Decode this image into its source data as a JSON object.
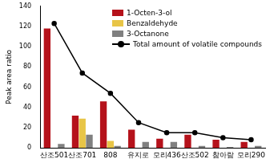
{
  "chart_data": {
    "type": "bar",
    "y_label": "Peak area ratio",
    "categories": [
      "산조501",
      "산조701",
      "808",
      "유지로",
      "모리436",
      "산조502",
      "참아람",
      "모리290"
    ],
    "series": [
      {
        "name": "1-Octen-3-ol",
        "color": "#b5121b",
        "values": [
          118,
          32,
          46,
          18,
          9,
          13,
          8,
          6
        ]
      },
      {
        "name": "Benzaldehyde",
        "color": "#e8c547",
        "values": [
          0,
          29,
          7,
          0,
          0,
          0,
          0,
          0
        ]
      },
      {
        "name": "3-Octanone",
        "color": "#808080",
        "values": [
          4,
          13,
          2,
          6,
          6,
          2,
          1,
          2
        ]
      },
      {
        "name": "Total amount of volatile compounds",
        "color": "#000000",
        "type": "line",
        "marker": "circle",
        "values": [
          123,
          74,
          54,
          25,
          15,
          15,
          10,
          8
        ]
      }
    ],
    "ylim": [
      0,
      140
    ],
    "yticks": [
      0,
      20,
      40,
      60,
      80,
      100,
      120,
      140
    ],
    "grid": false,
    "legend": "upper right"
  }
}
